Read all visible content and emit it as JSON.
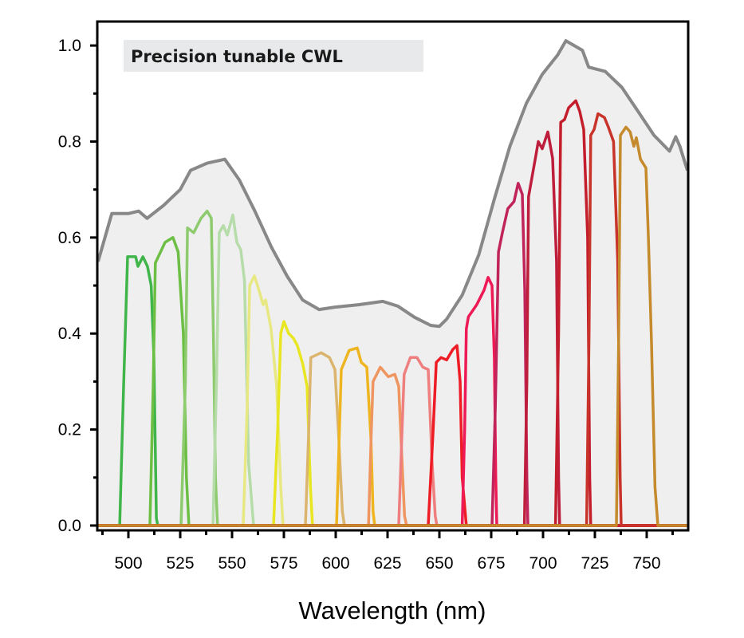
{
  "chart_data": {
    "type": "line",
    "title": "Precision tunable CWL",
    "xlabel": "Wavelength (nm)",
    "ylabel": "",
    "xlim": [
      485,
      770
    ],
    "ylim": [
      -0.01,
      1.05
    ],
    "xticks": [
      500,
      525,
      550,
      575,
      600,
      625,
      650,
      675,
      700,
      725,
      750
    ],
    "xtick_labels": [
      "500",
      "525",
      "550",
      "575",
      "600",
      "625",
      "650",
      "675",
      "700",
      "725",
      "750"
    ],
    "yticks": [
      0.0,
      0.2,
      0.4,
      0.6,
      0.8,
      1.0
    ],
    "ytick_labels": [
      "0.0",
      "0.2",
      "0.4",
      "0.6",
      "0.8",
      "1.0"
    ],
    "grid": false,
    "colors": {
      "envelope_line": "#888888",
      "envelope_fill": "#efefef",
      "title_box": "#e8e9ea"
    },
    "envelope": [
      [
        485.4,
        0.55
      ],
      [
        492,
        0.65
      ],
      [
        500,
        0.65
      ],
      [
        505,
        0.655
      ],
      [
        509,
        0.64
      ],
      [
        517,
        0.667
      ],
      [
        525,
        0.7
      ],
      [
        530,
        0.74
      ],
      [
        538,
        0.755
      ],
      [
        546.5,
        0.763
      ],
      [
        553.5,
        0.72
      ],
      [
        561,
        0.655
      ],
      [
        569,
        0.58
      ],
      [
        576.5,
        0.52
      ],
      [
        584,
        0.47
      ],
      [
        592,
        0.45
      ],
      [
        599.6,
        0.455
      ],
      [
        611,
        0.46
      ],
      [
        622.7,
        0.467
      ],
      [
        630,
        0.457
      ],
      [
        638,
        0.434
      ],
      [
        645.8,
        0.417
      ],
      [
        650,
        0.415
      ],
      [
        653.5,
        0.43
      ],
      [
        661,
        0.48
      ],
      [
        669,
        0.564
      ],
      [
        676.5,
        0.68
      ],
      [
        684,
        0.79
      ],
      [
        692,
        0.88
      ],
      [
        699.6,
        0.94
      ],
      [
        707,
        0.98
      ],
      [
        711,
        1.01
      ],
      [
        715,
        1.0
      ],
      [
        719,
        0.99
      ],
      [
        722,
        0.955
      ],
      [
        730,
        0.946
      ],
      [
        738,
        0.913
      ],
      [
        745.8,
        0.863
      ],
      [
        753.5,
        0.813
      ],
      [
        761,
        0.78
      ],
      [
        764,
        0.81
      ],
      [
        766,
        0.79
      ],
      [
        769.6,
        0.74
      ]
    ],
    "series": [
      {
        "color": "#3fb54a",
        "points": [
          [
            495.8,
            0
          ],
          [
            497.7,
            0.29
          ],
          [
            499.6,
            0.56
          ],
          [
            503.5,
            0.56
          ],
          [
            504.6,
            0.54
          ],
          [
            507,
            0.56
          ],
          [
            509.2,
            0.54
          ],
          [
            511,
            0.5
          ],
          [
            512.3,
            0.35
          ],
          [
            513.5,
            0.015
          ],
          [
            514.2,
            0
          ]
        ]
      },
      {
        "color": "#6cbf44",
        "points": [
          [
            510.4,
            0
          ],
          [
            512,
            0.3
          ],
          [
            513,
            0.547
          ],
          [
            517.7,
            0.59
          ],
          [
            521.5,
            0.6
          ],
          [
            524,
            0.57
          ],
          [
            526.5,
            0.4
          ],
          [
            528,
            0.1
          ],
          [
            529.2,
            0
          ]
        ]
      },
      {
        "color": "#8dcb6e",
        "points": [
          [
            525.4,
            0
          ],
          [
            527.5,
            0.3
          ],
          [
            528.5,
            0.62
          ],
          [
            531.5,
            0.61
          ],
          [
            535,
            0.64
          ],
          [
            538,
            0.655
          ],
          [
            540,
            0.64
          ],
          [
            541,
            0.4
          ],
          [
            542,
            0.1
          ],
          [
            543,
            0
          ]
        ]
      },
      {
        "color": "#b5dca9",
        "points": [
          [
            540.8,
            0
          ],
          [
            542.5,
            0.3
          ],
          [
            543.8,
            0.61
          ],
          [
            545.8,
            0.625
          ],
          [
            547.7,
            0.605
          ],
          [
            550.4,
            0.647
          ],
          [
            552.3,
            0.59
          ],
          [
            554.2,
            0.575
          ],
          [
            556,
            0.51
          ],
          [
            558,
            0.13
          ],
          [
            560.4,
            0
          ]
        ]
      },
      {
        "color": "#e8e882",
        "points": [
          [
            555.4,
            0
          ],
          [
            557.3,
            0.25
          ],
          [
            558.5,
            0.5
          ],
          [
            560.8,
            0.52
          ],
          [
            563,
            0.49
          ],
          [
            565,
            0.46
          ],
          [
            566.2,
            0.47
          ],
          [
            568.8,
            0.41
          ],
          [
            571.5,
            0.29
          ],
          [
            573.5,
            0.08
          ],
          [
            574.6,
            0
          ]
        ]
      },
      {
        "color": "#e8e620",
        "points": [
          [
            570,
            0
          ],
          [
            572,
            0.2
          ],
          [
            573.5,
            0.4
          ],
          [
            575,
            0.425
          ],
          [
            577.3,
            0.4
          ],
          [
            579.6,
            0.39
          ],
          [
            581.5,
            0.375
          ],
          [
            584.2,
            0.335
          ],
          [
            586.2,
            0.29
          ],
          [
            587.8,
            0.08
          ],
          [
            588.8,
            0
          ]
        ]
      },
      {
        "color": "#dbb56e",
        "points": [
          [
            585.4,
            0
          ],
          [
            587,
            0.2
          ],
          [
            588,
            0.35
          ],
          [
            593,
            0.36
          ],
          [
            597,
            0.35
          ],
          [
            599.6,
            0.325
          ],
          [
            601.5,
            0.18
          ],
          [
            603.2,
            0.03
          ],
          [
            604.2,
            0
          ]
        ]
      },
      {
        "color": "#eeb520",
        "points": [
          [
            600.4,
            0
          ],
          [
            601.8,
            0.2
          ],
          [
            602.7,
            0.325
          ],
          [
            606.5,
            0.365
          ],
          [
            610.4,
            0.37
          ],
          [
            612.3,
            0.34
          ],
          [
            615,
            0.33
          ],
          [
            617,
            0.18
          ],
          [
            618,
            0.03
          ],
          [
            618.8,
            0
          ]
        ]
      },
      {
        "color": "#ef9560",
        "points": [
          [
            615.8,
            0
          ],
          [
            617.2,
            0.2
          ],
          [
            618,
            0.3
          ],
          [
            621.5,
            0.33
          ],
          [
            625.4,
            0.31
          ],
          [
            628.5,
            0.315
          ],
          [
            630.4,
            0.29
          ],
          [
            631.5,
            0.18
          ],
          [
            633.2,
            0.02
          ],
          [
            634.2,
            0
          ]
        ]
      },
      {
        "color": "#ef7f7f",
        "points": [
          [
            630.4,
            0
          ],
          [
            632,
            0.2
          ],
          [
            633,
            0.315
          ],
          [
            636,
            0.35
          ],
          [
            639.2,
            0.35
          ],
          [
            642,
            0.33
          ],
          [
            644.6,
            0.325
          ],
          [
            646.5,
            0.13
          ],
          [
            648,
            0.02
          ],
          [
            648.8,
            0
          ]
        ]
      },
      {
        "color": "#ee1c25",
        "points": [
          [
            644.6,
            0
          ],
          [
            647,
            0.2
          ],
          [
            648.5,
            0.34
          ],
          [
            650.8,
            0.35
          ],
          [
            653.5,
            0.345
          ],
          [
            656.5,
            0.367
          ],
          [
            658.5,
            0.375
          ],
          [
            660,
            0.3
          ],
          [
            661,
            0.1
          ],
          [
            663,
            0
          ]
        ]
      },
      {
        "color": "#ee1a55",
        "points": [
          [
            661,
            0
          ],
          [
            662.2,
            0.2
          ],
          [
            663,
            0.41
          ],
          [
            664,
            0.435
          ],
          [
            668,
            0.46
          ],
          [
            671.5,
            0.49
          ],
          [
            673.5,
            0.517
          ],
          [
            675.4,
            0.5
          ],
          [
            676.5,
            0.35
          ],
          [
            677.2,
            0.1
          ],
          [
            677.7,
            0
          ]
        ]
      },
      {
        "color": "#c0245a",
        "points": [
          [
            675.4,
            0
          ],
          [
            677,
            0.25
          ],
          [
            678.5,
            0.57
          ],
          [
            680.4,
            0.61
          ],
          [
            683,
            0.66
          ],
          [
            686,
            0.675
          ],
          [
            688,
            0.713
          ],
          [
            690,
            0.69
          ],
          [
            691.2,
            0.49
          ],
          [
            692.2,
            0.1
          ],
          [
            692.7,
            0
          ]
        ]
      },
      {
        "color": "#be1e3c",
        "points": [
          [
            691,
            0
          ],
          [
            692.2,
            0.3
          ],
          [
            693,
            0.685
          ],
          [
            696.5,
            0.77
          ],
          [
            697.7,
            0.8
          ],
          [
            699.6,
            0.785
          ],
          [
            702.3,
            0.82
          ],
          [
            704.6,
            0.765
          ],
          [
            706.5,
            0.55
          ],
          [
            707.5,
            0.1
          ],
          [
            708,
            0
          ]
        ]
      },
      {
        "color": "#c41e2d",
        "points": [
          [
            706,
            0
          ],
          [
            707.5,
            0.4
          ],
          [
            708.5,
            0.84
          ],
          [
            710.4,
            0.846
          ],
          [
            712.3,
            0.87
          ],
          [
            715.8,
            0.885
          ],
          [
            717.7,
            0.863
          ],
          [
            719.6,
            0.825
          ],
          [
            721.5,
            0.6
          ],
          [
            722.5,
            0.1
          ],
          [
            723,
            0
          ]
        ]
      },
      {
        "color": "#c8342a",
        "points": [
          [
            721,
            0
          ],
          [
            722.2,
            0.4
          ],
          [
            723,
            0.813
          ],
          [
            724.6,
            0.825
          ],
          [
            726.5,
            0.858
          ],
          [
            729.6,
            0.85
          ],
          [
            731.5,
            0.83
          ],
          [
            734,
            0.8
          ],
          [
            736,
            0.55
          ],
          [
            737.2,
            0.1
          ],
          [
            737.7,
            0
          ]
        ]
      },
      {
        "color": "#c48a2c",
        "points": [
          [
            735.4,
            0
          ],
          [
            736.5,
            0.4
          ],
          [
            737.3,
            0.813
          ],
          [
            740,
            0.83
          ],
          [
            742,
            0.82
          ],
          [
            743.8,
            0.79
          ],
          [
            745,
            0.808
          ],
          [
            747,
            0.763
          ],
          [
            749.6,
            0.745
          ],
          [
            750.8,
            0.6
          ],
          [
            752.3,
            0.38
          ],
          [
            754,
            0.08
          ],
          [
            755.4,
            0
          ]
        ]
      }
    ]
  }
}
